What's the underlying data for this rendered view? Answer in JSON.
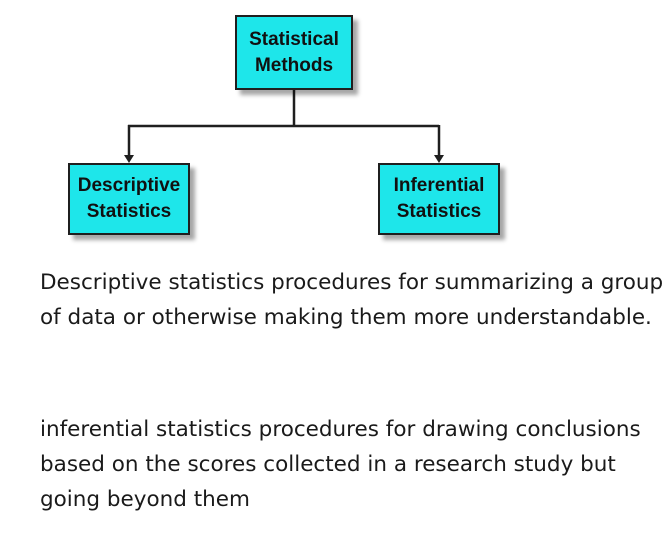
{
  "diagram": {
    "root": {
      "label": "Statistical\nMethods"
    },
    "children": [
      {
        "label": "Descriptive\nStatistics"
      },
      {
        "label": "Inferential\nStatistics"
      }
    ],
    "colors": {
      "box_fill": "#1ee6ea",
      "box_border": "#1f1f1f",
      "connector": "#1f1f1f"
    }
  },
  "definitions": [
    {
      "text": "Descriptive statistics procedures for summarizing a group of data or otherwise making them more understandable."
    },
    {
      "text": "inferential statistics procedures for drawing conclusions based on the scores collected in a research study but going beyond them"
    }
  ]
}
